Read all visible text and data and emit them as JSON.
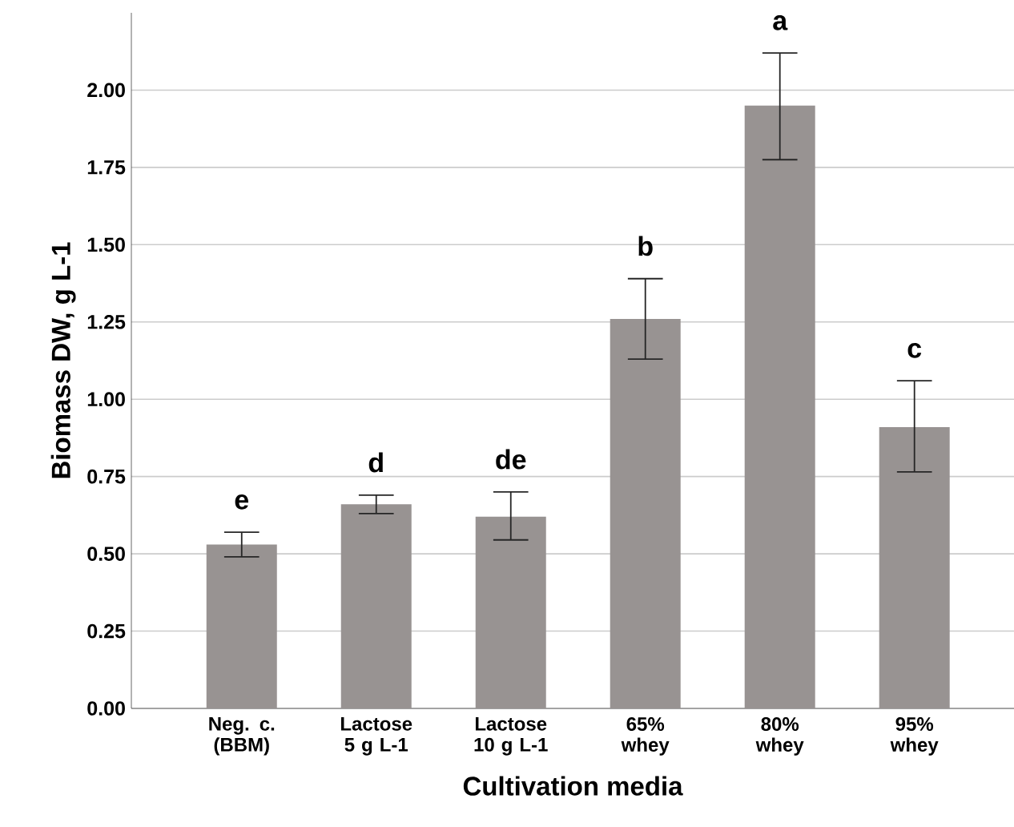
{
  "chart_data": {
    "type": "bar",
    "xlabel": "Cultivation media",
    "ylabel": "Biomass DW, g L-1",
    "categories": [
      "Neg. c. (BBM)",
      "Lactose 5 g L-1",
      "Lactose 10 g L-1",
      "65% whey",
      "80% whey",
      "95% whey"
    ],
    "values": [
      0.53,
      0.66,
      0.62,
      1.26,
      1.95,
      0.91
    ],
    "errors": [
      [
        0.49,
        0.57
      ],
      [
        0.63,
        0.69
      ],
      [
        0.545,
        0.7
      ],
      [
        1.13,
        1.39
      ],
      [
        1.775,
        2.12
      ],
      [
        0.765,
        1.06
      ]
    ],
    "color": "#989392",
    "ylim": [
      0,
      2.25
    ],
    "yticks": [
      {
        "value": 0,
        "label": "0.00"
      },
      {
        "value": 0.25,
        "label": "0.25"
      },
      {
        "value": 0.5,
        "label": "0.50"
      },
      {
        "value": 0.75,
        "label": "0.75"
      },
      {
        "value": 1,
        "label": "1.00"
      },
      {
        "value": 1.25,
        "label": "1.25"
      },
      {
        "value": 1.5,
        "label": "1.50"
      },
      {
        "value": 1.75,
        "label": "1.75"
      },
      {
        "value": 2,
        "label": "2.00"
      }
    ],
    "grid": "y",
    "annotations": [
      {
        "text": "e",
        "x": "Neg. c. (BBM)",
        "y": 0.57
      },
      {
        "text": "d",
        "x": "Lactose 5 g L-1",
        "y": 0.69
      },
      {
        "text": "de",
        "x": "Lactose 10 g L-1",
        "y": 0.7
      },
      {
        "text": "b",
        "x": "65% whey",
        "y": 1.39
      },
      {
        "text": "a",
        "x": "80% whey",
        "y": 2.12
      },
      {
        "text": "c",
        "x": "95% whey",
        "y": 1.06
      }
    ]
  }
}
